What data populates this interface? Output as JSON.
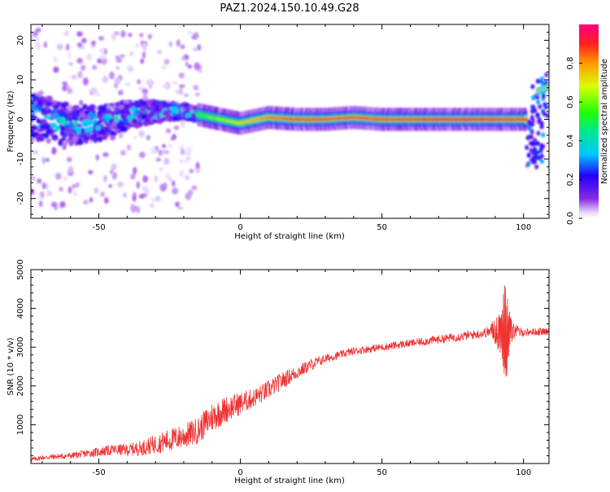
{
  "title": "PAZ1.2024.150.10.49.G28",
  "chart_data": [
    {
      "type": "heatmap",
      "xlabel": "Height of straight line (km)",
      "ylabel": "Frequency (Hz)",
      "xlim": [
        -74,
        109
      ],
      "ylim": [
        -25,
        24
      ],
      "x_ticks": [
        -50,
        0,
        50,
        100
      ],
      "y_ticks": [
        -20,
        -10,
        0,
        10,
        20
      ],
      "colorbar": {
        "label": "Normalized spectral amplitude",
        "range": [
          0,
          1
        ],
        "ticks": [
          0.0,
          0.2,
          0.4,
          0.6,
          0.8
        ]
      },
      "ridge": {
        "description_points": [
          {
            "x": -70,
            "f": 0.5,
            "amp": 0.25
          },
          {
            "x": -60,
            "f": -1.5,
            "amp": 0.3
          },
          {
            "x": -50,
            "f": -1.0,
            "amp": 0.3
          },
          {
            "x": -40,
            "f": 1.0,
            "amp": 0.35
          },
          {
            "x": -30,
            "f": 2.0,
            "amp": 0.4
          },
          {
            "x": -20,
            "f": 2.0,
            "amp": 0.5
          },
          {
            "x": -10,
            "f": 0.5,
            "amp": 0.6
          },
          {
            "x": 0,
            "f": -1.0,
            "amp": 0.7
          },
          {
            "x": 10,
            "f": 0.5,
            "amp": 0.85
          },
          {
            "x": 20,
            "f": 0.0,
            "amp": 0.9
          },
          {
            "x": 30,
            "f": 0.0,
            "amp": 0.9
          },
          {
            "x": 40,
            "f": 0.5,
            "amp": 0.9
          },
          {
            "x": 50,
            "f": 0.0,
            "amp": 0.9
          },
          {
            "x": 60,
            "f": 0.0,
            "amp": 0.9
          },
          {
            "x": 70,
            "f": 0.0,
            "amp": 0.95
          },
          {
            "x": 80,
            "f": 0.0,
            "amp": 0.95
          },
          {
            "x": 90,
            "f": 0.0,
            "amp": 0.95
          },
          {
            "x": 100,
            "f": 0.0,
            "amp": 0.9
          }
        ]
      }
    },
    {
      "type": "line",
      "xlabel": "Height of straight line (km)",
      "ylabel": "SNR (10 * v/v)",
      "xlim": [
        -74,
        109
      ],
      "ylim": [
        0,
        5000
      ],
      "x_ticks": [
        -50,
        0,
        50,
        100
      ],
      "y_ticks": [
        1000,
        2000,
        3000,
        4000,
        5000
      ],
      "series": [
        {
          "color": "#ee3333",
          "x": [
            -74,
            -70,
            -65,
            -60,
            -55,
            -50,
            -45,
            -40,
            -35,
            -30,
            -25,
            -20,
            -15,
            -10,
            -5,
            0,
            5,
            10,
            15,
            20,
            25,
            30,
            35,
            40,
            45,
            50,
            55,
            60,
            65,
            70,
            75,
            80,
            85,
            88,
            90,
            92,
            93,
            94,
            95,
            96,
            98,
            100,
            105,
            109
          ],
          "y": [
            100,
            150,
            180,
            200,
            250,
            300,
            350,
            350,
            400,
            500,
            600,
            700,
            850,
            1200,
            1400,
            1550,
            1700,
            1900,
            2150,
            2350,
            2550,
            2700,
            2800,
            2900,
            2950,
            3000,
            3050,
            3100,
            3150,
            3200,
            3250,
            3300,
            3350,
            3400,
            3450,
            3500,
            3300,
            3000,
            3550,
            3500,
            3400,
            3380,
            3400,
            3400
          ],
          "noise": [
            60,
            60,
            70,
            80,
            100,
            120,
            140,
            160,
            200,
            250,
            300,
            320,
            350,
            400,
            350,
            300,
            250,
            250,
            220,
            180,
            150,
            120,
            100,
            100,
            100,
            100,
            100,
            100,
            110,
            110,
            110,
            120,
            120,
            150,
            400,
            700,
            1200,
            1500,
            500,
            300,
            150,
            100,
            100,
            100
          ]
        }
      ]
    }
  ]
}
